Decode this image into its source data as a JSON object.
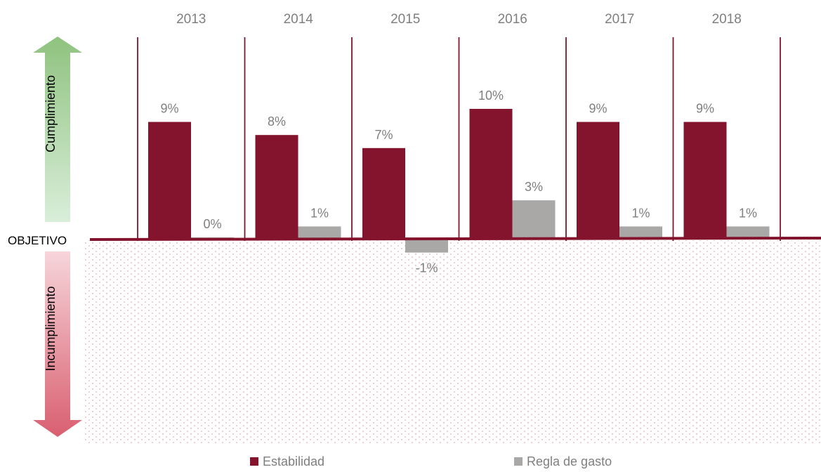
{
  "chart_data": {
    "type": "bar",
    "categories": [
      "2013",
      "2014",
      "2015",
      "2016",
      "2017",
      "2018"
    ],
    "series": [
      {
        "name": "Estabilidad",
        "values": [
          9,
          8,
          7,
          10,
          9,
          9
        ],
        "labels": [
          "9%",
          "8%",
          "7%",
          "10%",
          "9%",
          "9%"
        ],
        "color": "#84142d"
      },
      {
        "name": "Regla de gasto",
        "values": [
          0,
          1,
          -1,
          3,
          1,
          1
        ],
        "labels": [
          "0%",
          "1%",
          "-1%",
          "3%",
          "1%",
          "1%"
        ],
        "color": "#aaa7a7"
      }
    ],
    "ylim": [
      -16,
      12
    ],
    "objective_label": "OBJETIVO",
    "upper_axis_label": "Cumplimiento",
    "lower_axis_label": "Incumplimiento",
    "legend_position": "bottom",
    "colors": {
      "upper_arrow": "#8fc27f",
      "lower_arrow": "#d95f70",
      "divider": "#84142d",
      "dots": "#e3a5ae",
      "text": "#7f7f7f"
    }
  }
}
